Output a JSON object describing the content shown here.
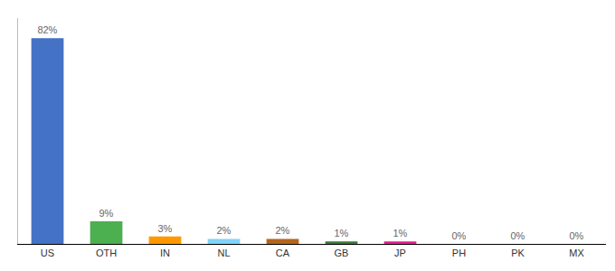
{
  "chart_data": {
    "type": "bar",
    "categories": [
      "US",
      "OTH",
      "IN",
      "NL",
      "CA",
      "GB",
      "JP",
      "PH",
      "PK",
      "MX"
    ],
    "values": [
      82,
      9,
      3,
      2,
      2,
      1,
      1,
      0,
      0,
      0
    ],
    "value_labels": [
      "82%",
      "9%",
      "3%",
      "2%",
      "2%",
      "1%",
      "1%",
      "0%",
      "0%",
      "0%"
    ],
    "colors": [
      "#4472c4",
      "#4caf50",
      "#ff9800",
      "#81d4fa",
      "#b5651d",
      "#3a7a3a",
      "#e91e8c",
      "#aaaaaa",
      "#aaaaaa",
      "#aaaaaa"
    ],
    "ylim": [
      0,
      90
    ],
    "grid": false,
    "data_labels": true,
    "tick_labels": "x"
  }
}
